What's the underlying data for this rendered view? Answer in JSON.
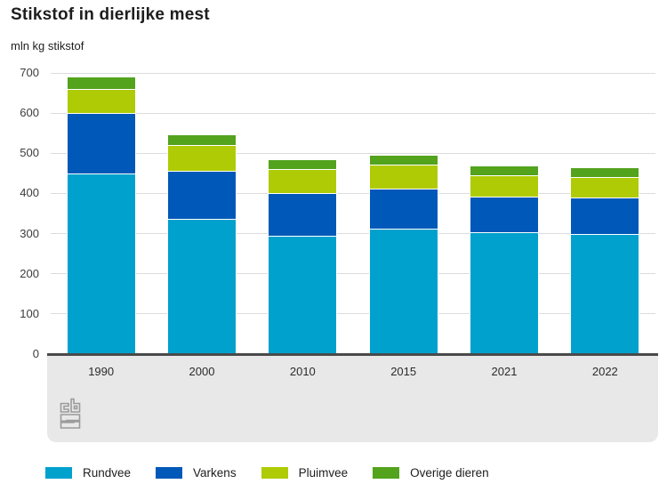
{
  "chart_data": {
    "type": "bar",
    "stacked": true,
    "title": "Stikstof in dierlijke mest",
    "ylabel": "mln kg stikstof",
    "xlabel": "",
    "categories": [
      "1990",
      "2000",
      "2010",
      "2015",
      "2021",
      "2022"
    ],
    "series": [
      {
        "name": "Rundvee",
        "color": "#00a1cd",
        "values": [
          450,
          337,
          295,
          313,
          304,
          300
        ]
      },
      {
        "name": "Varkens",
        "color": "#0058b8",
        "values": [
          150,
          120,
          107,
          100,
          89,
          89
        ]
      },
      {
        "name": "Pluimvee",
        "color": "#afcb05",
        "values": [
          61,
          63,
          59,
          59,
          52,
          52
        ]
      },
      {
        "name": "Overige dieren",
        "color": "#53a31d",
        "values": [
          29,
          24,
          22,
          22,
          23,
          23
        ]
      }
    ],
    "totals": [
      690,
      544,
      483,
      494,
      468,
      464
    ],
    "ylim": [
      0,
      700
    ],
    "y_ticks": [
      0,
      100,
      200,
      300,
      400,
      500,
      600,
      700
    ],
    "grid": true,
    "legend_position": "bottom",
    "axis_color": "#4a4a4a",
    "gridline_color": "#dcdcdc",
    "footer_band_color": "#e8e8e8"
  },
  "branding": {
    "logo_icon": "cbs-logo"
  }
}
